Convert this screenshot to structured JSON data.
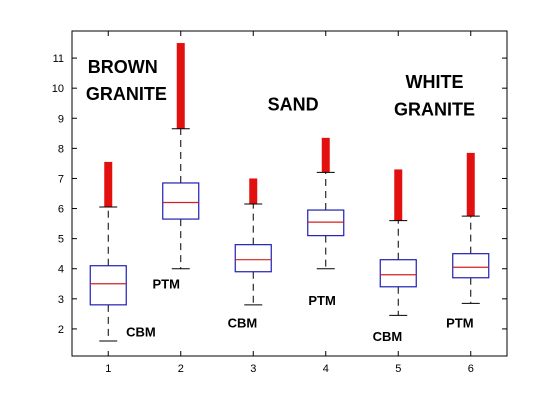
{
  "chart_data": {
    "type": "box",
    "title": "",
    "xlabel": "",
    "ylabel": "",
    "xlim": [
      0.5,
      6.5
    ],
    "ylim": [
      1.1,
      11.9
    ],
    "x_ticks": [
      "1",
      "2",
      "3",
      "4",
      "5",
      "6"
    ],
    "y_ticks": [
      2,
      3,
      4,
      5,
      6,
      7,
      8,
      9,
      10,
      11
    ],
    "grid": false,
    "colors": {
      "box": "#1f1fb4",
      "median": "#d62020",
      "whisker": "#000000",
      "outlier": "#e31010"
    },
    "boxes": [
      {
        "x": 1,
        "whisker_low": 1.6,
        "q1": 2.8,
        "median": 3.5,
        "q3": 4.1,
        "whisker_high": 6.05,
        "outlier_top": 7.55
      },
      {
        "x": 2,
        "whisker_low": 4.0,
        "q1": 5.65,
        "median": 6.2,
        "q3": 6.85,
        "whisker_high": 8.65,
        "outlier_top": 11.5
      },
      {
        "x": 3,
        "whisker_low": 2.8,
        "q1": 3.9,
        "median": 4.3,
        "q3": 4.8,
        "whisker_high": 6.15,
        "outlier_top": 7.0
      },
      {
        "x": 4,
        "whisker_low": 4.0,
        "q1": 5.1,
        "median": 5.55,
        "q3": 5.95,
        "whisker_high": 7.2,
        "outlier_top": 8.35
      },
      {
        "x": 5,
        "whisker_low": 2.45,
        "q1": 3.4,
        "median": 3.8,
        "q3": 4.3,
        "whisker_high": 5.6,
        "outlier_top": 7.3
      },
      {
        "x": 6,
        "whisker_low": 2.85,
        "q1": 3.7,
        "median": 4.05,
        "q3": 4.5,
        "whisker_high": 5.75,
        "outlier_top": 7.85
      }
    ],
    "annotations": [
      {
        "text": "BROWN",
        "x": 1.2,
        "y": 10.5,
        "size": "big"
      },
      {
        "text": "GRANITE",
        "x": 1.25,
        "y": 9.6,
        "size": "big"
      },
      {
        "text": "SAND",
        "x": 3.55,
        "y": 9.25,
        "size": "big"
      },
      {
        "text": "WHITE",
        "x": 5.5,
        "y": 10.0,
        "size": "big"
      },
      {
        "text": "GRANITE",
        "x": 5.5,
        "y": 9.1,
        "size": "big"
      },
      {
        "text": "CBM",
        "x": 1.45,
        "y": 1.75,
        "size": "small"
      },
      {
        "text": "PTM",
        "x": 1.8,
        "y": 3.35,
        "size": "small"
      },
      {
        "text": "CBM",
        "x": 2.85,
        "y": 2.05,
        "size": "small"
      },
      {
        "text": "PTM",
        "x": 3.95,
        "y": 2.8,
        "size": "small"
      },
      {
        "text": "CBM",
        "x": 4.85,
        "y": 1.6,
        "size": "small"
      },
      {
        "text": "PTM",
        "x": 5.85,
        "y": 2.05,
        "size": "small"
      }
    ]
  }
}
